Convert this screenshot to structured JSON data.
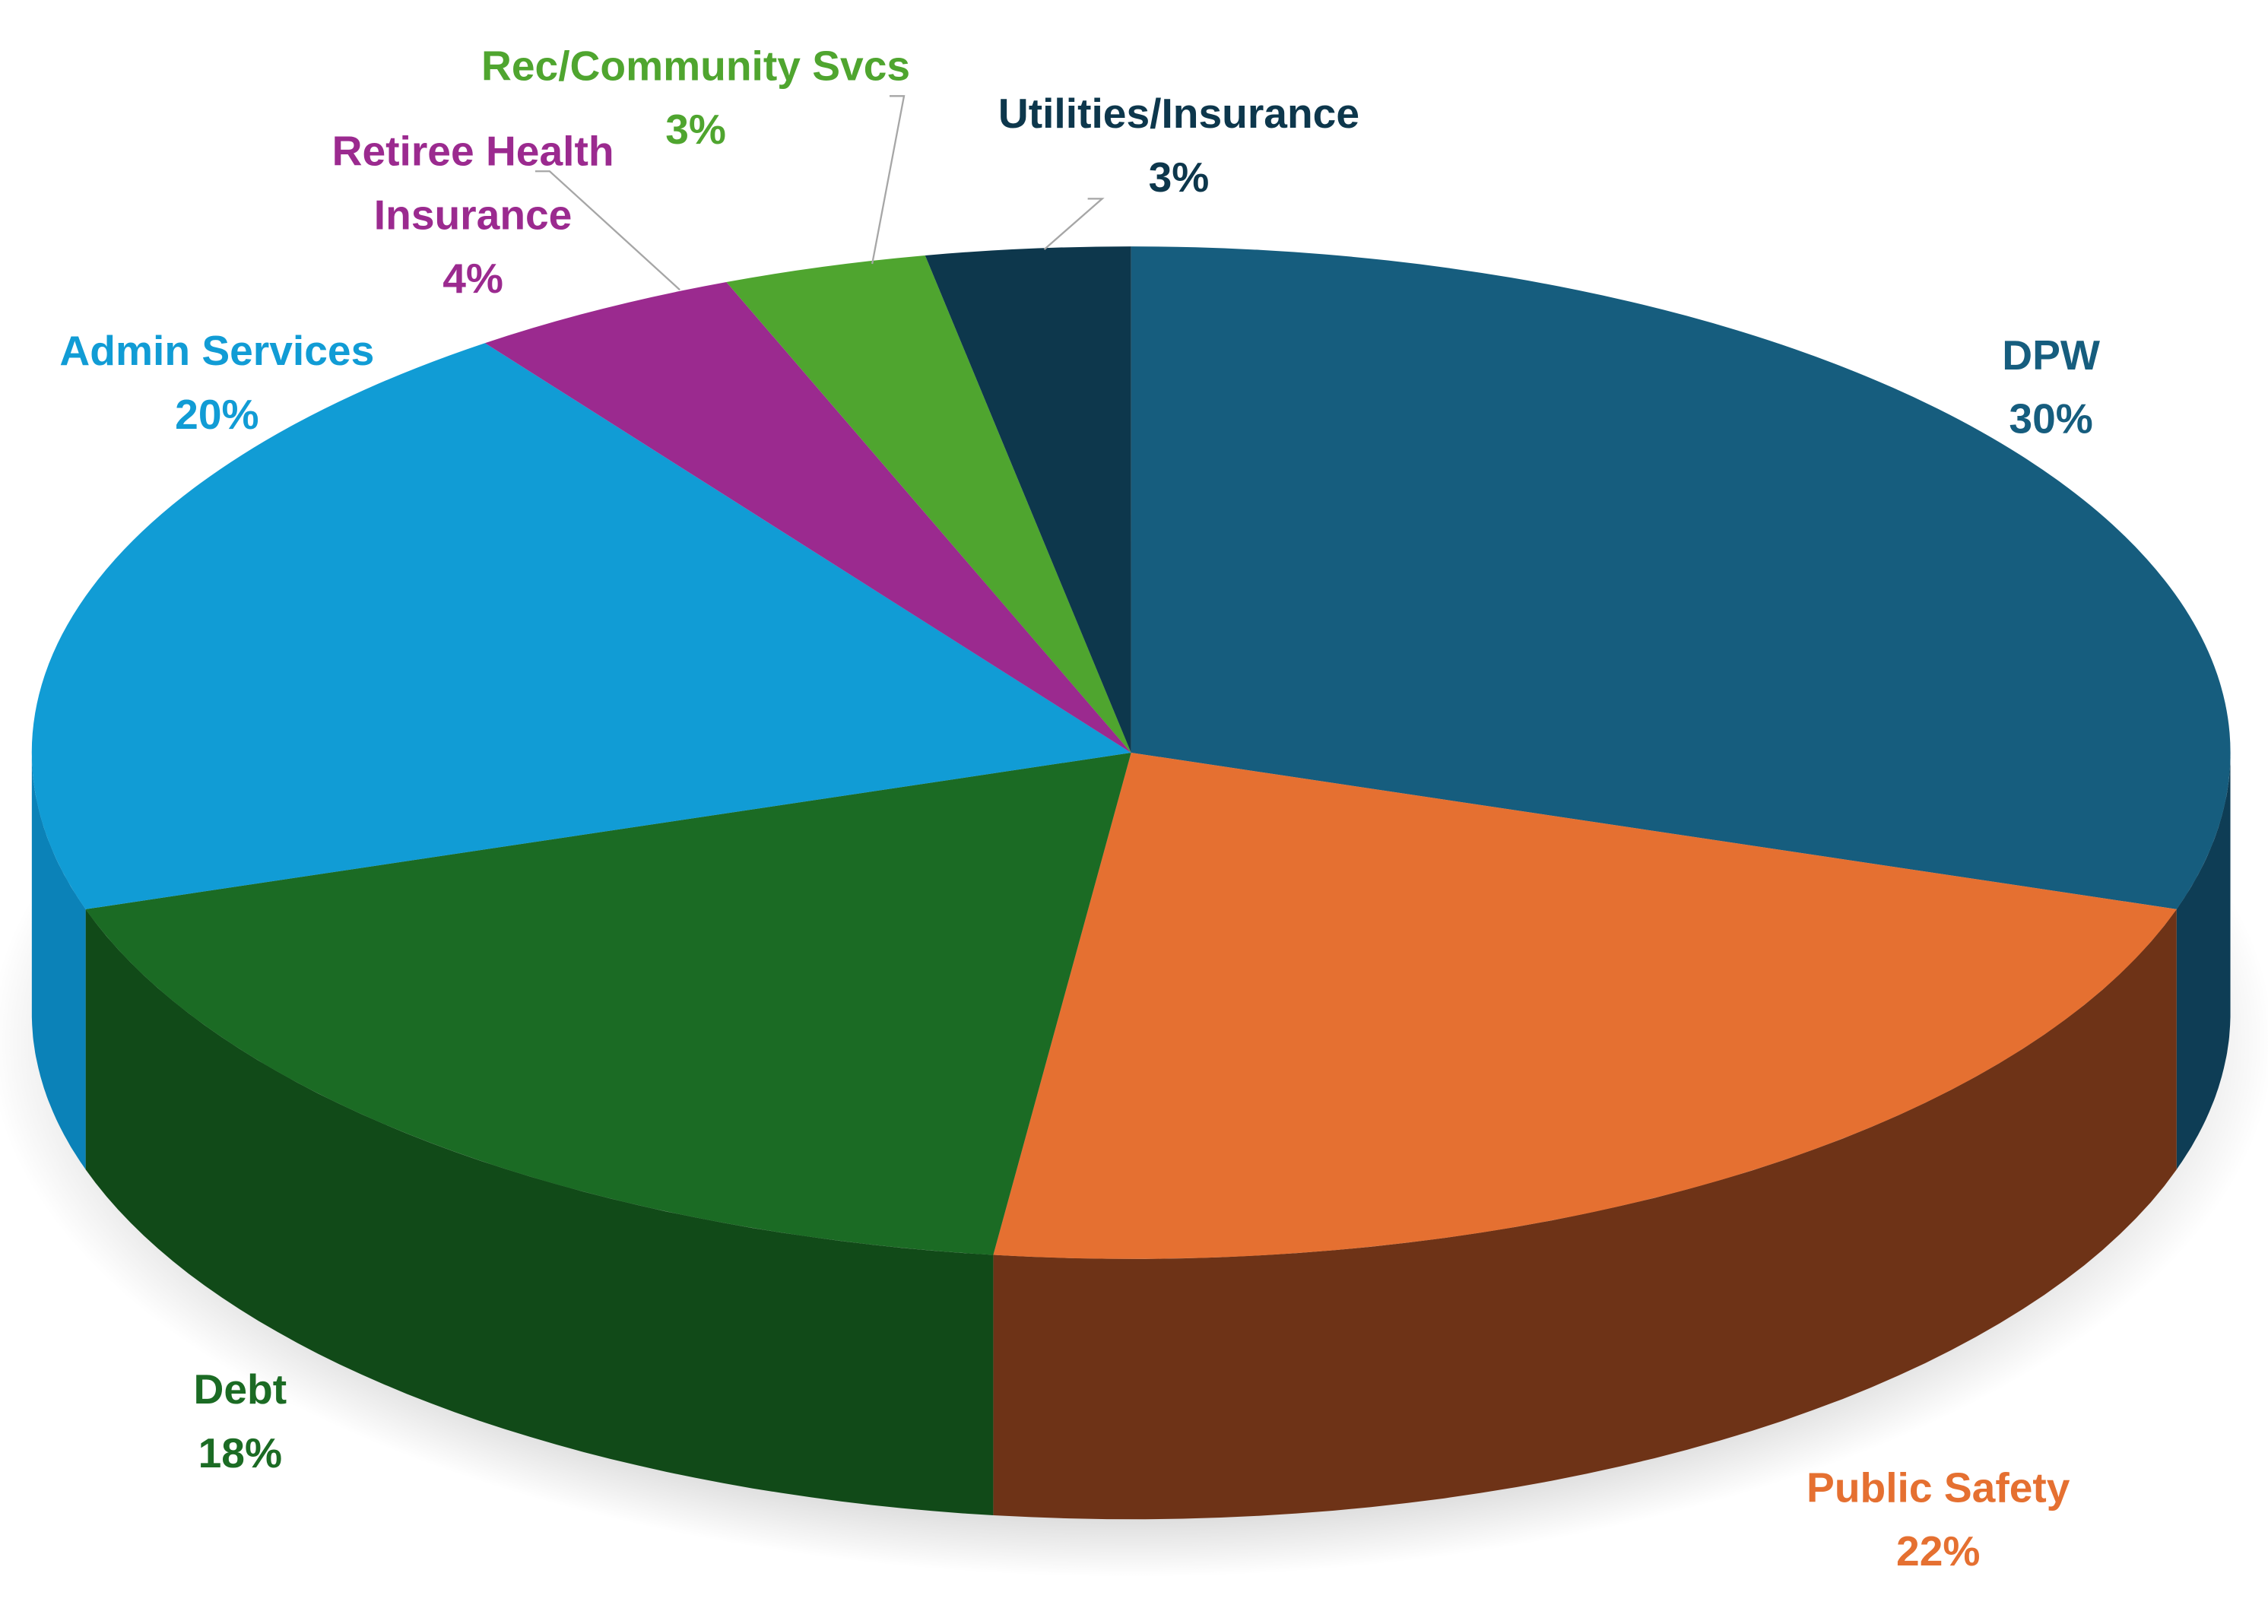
{
  "chart_data": {
    "type": "pie",
    "style": "3d",
    "title": "",
    "start": "top",
    "direction": "clockwise",
    "slices": [
      {
        "label": "DPW",
        "value": 30,
        "value_label": "30%",
        "color": "#165d7e",
        "side_color": "#0e3d55"
      },
      {
        "label": "Public Safety",
        "value": 22,
        "value_label": "22%",
        "color": "#e57031",
        "side_color": "#6e3317"
      },
      {
        "label": "Debt",
        "value": 18,
        "value_label": "18%",
        "color": "#1b6b24",
        "side_color": "#114a18"
      },
      {
        "label": "Admin Services",
        "value": 20,
        "value_label": "20%",
        "color": "#119cd5",
        "side_color": "#0b82b8"
      },
      {
        "label": "Retiree Health Insurance",
        "label_lines": [
          "Retiree Health",
          "Insurance"
        ],
        "value": 4,
        "value_label": "4%",
        "color": "#9b2a8f",
        "side_color": "#6e1e66"
      },
      {
        "label": "Rec/Community Svcs",
        "value": 3,
        "value_label": "3%",
        "color": "#4fa52f",
        "side_color": "#387a21"
      },
      {
        "label": "Utilities/Insurance",
        "value": 3,
        "value_label": "3%",
        "color": "#0d374c",
        "side_color": "#082634"
      }
    ],
    "legend": "none",
    "data_labels": "category-and-percent"
  }
}
